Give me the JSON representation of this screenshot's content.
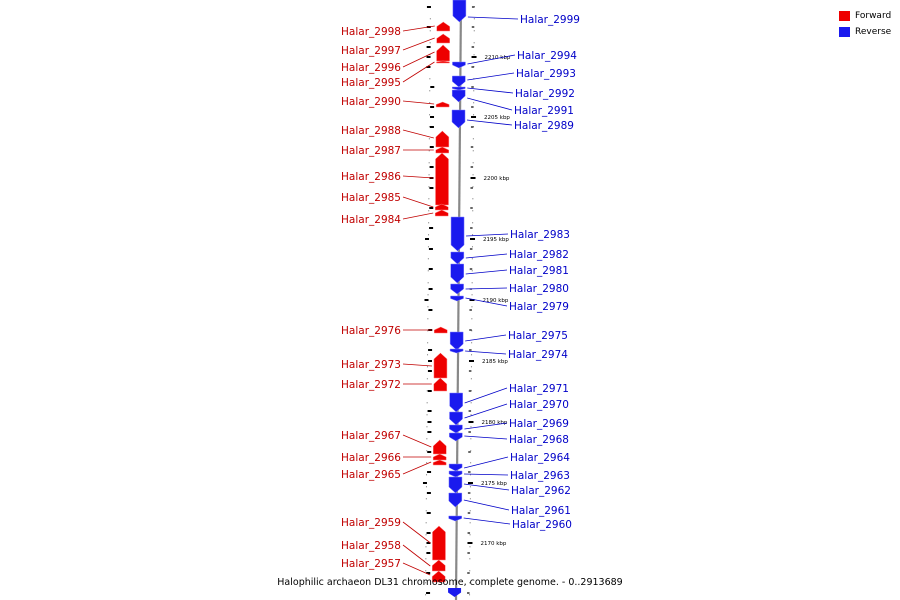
{
  "caption": "Halophilic archaeon DL31 chromosome, complete genome. - 0..2913689",
  "legend": [
    {
      "label": "Forward",
      "color": "#ee0000"
    },
    {
      "label": "Reverse",
      "color": "#1a1aee"
    }
  ],
  "colors": {
    "forward": "#ee0000",
    "reverse": "#1a1aee",
    "forward_label": "#c00000",
    "reverse_label": "#0000c8",
    "backbone": "#888888"
  },
  "ticks": [
    {
      "label": "2210 kbp"
    },
    {
      "label": "2205 kbp"
    },
    {
      "label": "2200 kbp"
    },
    {
      "label": "2195 kbp"
    },
    {
      "label": "2190 kbp"
    },
    {
      "label": "2185 kbp"
    },
    {
      "label": "2180 kbp"
    },
    {
      "label": "2175 kbp"
    },
    {
      "label": "2170 kbp"
    }
  ],
  "forward_genes": [
    {
      "name": "Halar_2998"
    },
    {
      "name": "Halar_2997"
    },
    {
      "name": "Halar_2996"
    },
    {
      "name": "Halar_2995"
    },
    {
      "name": "Halar_2990"
    },
    {
      "name": "Halar_2988"
    },
    {
      "name": "Halar_2987"
    },
    {
      "name": "Halar_2986"
    },
    {
      "name": "Halar_2985"
    },
    {
      "name": "Halar_2984"
    },
    {
      "name": "Halar_2976"
    },
    {
      "name": "Halar_2973"
    },
    {
      "name": "Halar_2972"
    },
    {
      "name": "Halar_2967"
    },
    {
      "name": "Halar_2966"
    },
    {
      "name": "Halar_2965"
    },
    {
      "name": "Halar_2959"
    },
    {
      "name": "Halar_2958"
    },
    {
      "name": "Halar_2957"
    }
  ],
  "reverse_genes": [
    {
      "name": "Halar_2999"
    },
    {
      "name": "Halar_2994"
    },
    {
      "name": "Halar_2993"
    },
    {
      "name": "Halar_2992"
    },
    {
      "name": "Halar_2991"
    },
    {
      "name": "Halar_2989"
    },
    {
      "name": "Halar_2983"
    },
    {
      "name": "Halar_2982"
    },
    {
      "name": "Halar_2981"
    },
    {
      "name": "Halar_2980"
    },
    {
      "name": "Halar_2979"
    },
    {
      "name": "Halar_2975"
    },
    {
      "name": "Halar_2974"
    },
    {
      "name": "Halar_2971"
    },
    {
      "name": "Halar_2970"
    },
    {
      "name": "Halar_2969"
    },
    {
      "name": "Halar_2968"
    },
    {
      "name": "Halar_2964"
    },
    {
      "name": "Halar_2963"
    },
    {
      "name": "Halar_2962"
    },
    {
      "name": "Halar_2961"
    },
    {
      "name": "Halar_2960"
    }
  ]
}
